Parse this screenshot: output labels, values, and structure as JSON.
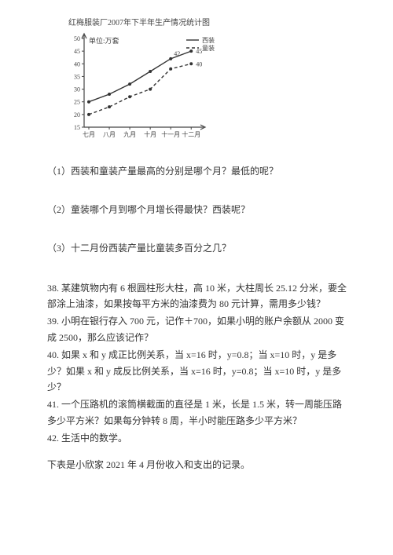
{
  "chart": {
    "title": "红梅服装厂2007年下半年生产情况统计图",
    "y_unit_label": "单位:万套",
    "legend": {
      "suit": "西装",
      "kids": "童装"
    },
    "x_labels": [
      "七月",
      "八月",
      "九月",
      "十月",
      "十一月",
      "十二月"
    ],
    "y_ticks": [
      15,
      20,
      25,
      30,
      35,
      40,
      45,
      50
    ],
    "suit_values": [
      25,
      28,
      32,
      37,
      42,
      45
    ],
    "kids_values": [
      20,
      23,
      27,
      30,
      38,
      40
    ],
    "annot": {
      "suit_end": "45",
      "kids_end": "40",
      "suit_mid": "42"
    },
    "colors": {
      "axis": "#444444",
      "tick": "#444444",
      "text": "#444444",
      "suit_line": "#333333",
      "kids_line": "#333333",
      "bg": "#ffffff"
    },
    "style": {
      "suit_dash": "0",
      "kids_dash": "4 3",
      "line_width": 1.4,
      "marker_r": 2
    }
  },
  "q1": "（1）西装和童装产量最高的分别是哪个月？最低的呢？",
  "q2": "（2）童装哪个月到哪个月增长得最快？西装呢？",
  "q3": "（3）十二月份西装产量比童装多百分之几？",
  "p38": "38. 某建筑物内有 6 根圆柱形大柱，高 10 米，大柱周长 25.12 分米，要全部涂上油漆，如果按每平方米的油漆费为 80 元计算，需用多少钱？",
  "p39": "39. 小明在银行存入 700 元，记作＋700，如果小明的账户余额从 2000 变成 2500，那么应该记作？",
  "p40": "40. 如果 x 和 y 成正比例关系，当 x=16 时，y=0.8；当 x=10 时，y 是多少？如果 x 和 y 成反比例关系，当 x=16 时，y=0.8；当 x=10 时，y 是多少？",
  "p41": "41. 一个压路机的滚筒横截面的直径是 1 米，长是 1.5 米，转一周能压路多少平方米？如果每分钟转 8 周，半小时能压路多少平方米？",
  "p42": "42. 生活中的数学。",
  "p42b": "下表是小欣家 2021 年 4 月份收入和支出的记录。"
}
